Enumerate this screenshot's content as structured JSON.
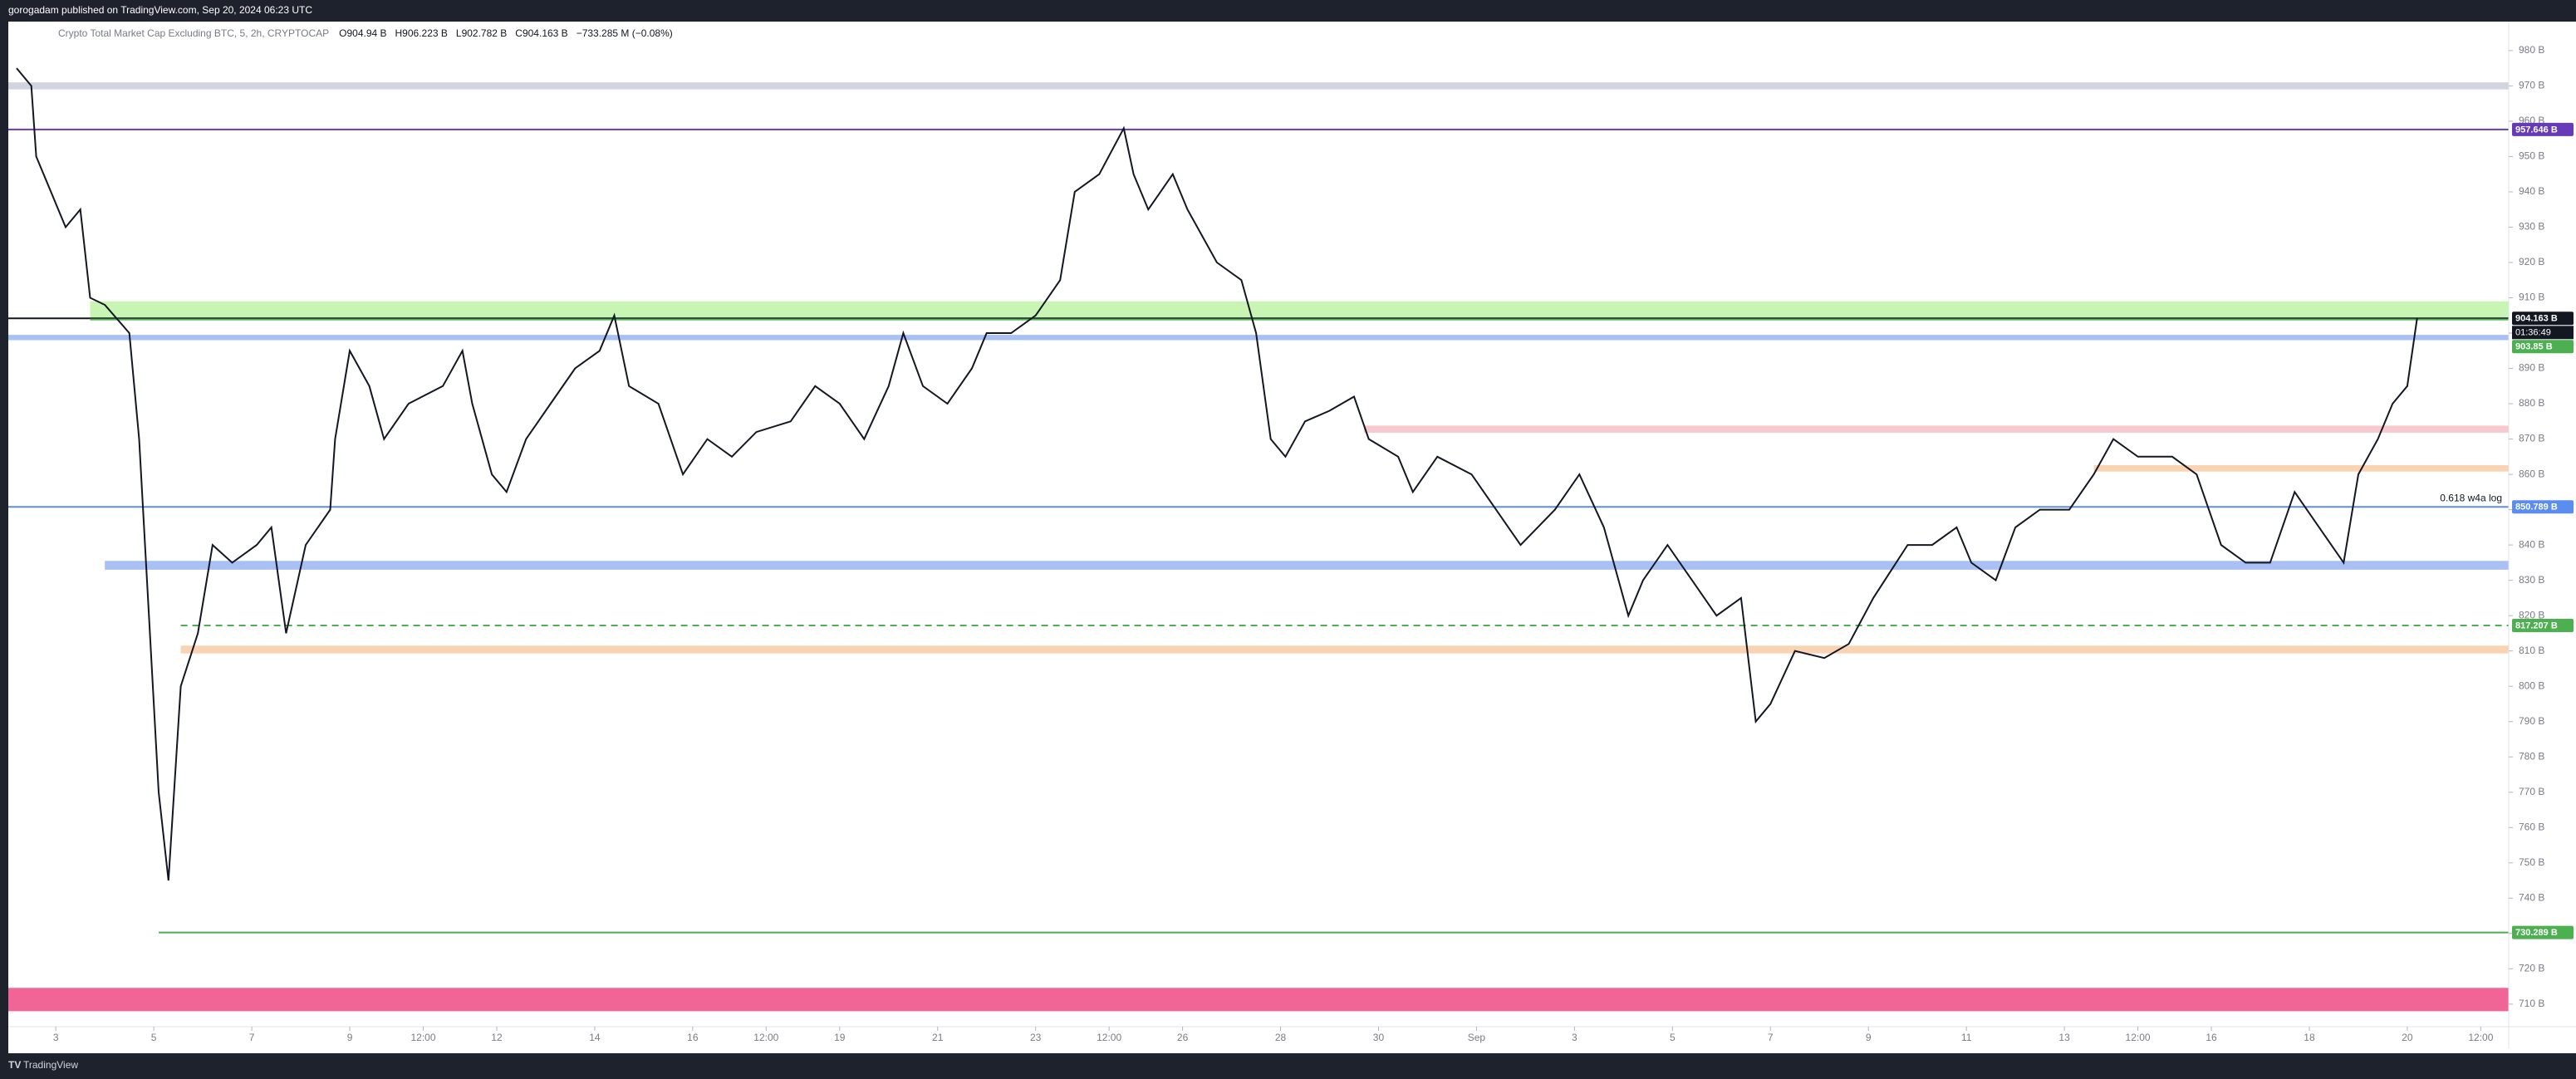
{
  "header": {
    "publisher": "gorogadam published on TradingView.com, Sep 20, 2024 06:23 UTC",
    "brand": "TradingView"
  },
  "chart_data": {
    "type": "line",
    "title": "Crypto Total Market Cap Excluding BTC, 5, 2h, CRYPTOCAP",
    "ohlc": [
      "O904.94 B",
      "H906.223 B",
      "L902.782 B",
      "C904.163 B",
      "−733.285 M (−0.08%)"
    ],
    "color": "#131722",
    "x": [
      2.2,
      2.5,
      2.6,
      2.9,
      3.2,
      3.5,
      3.7,
      4.0,
      4.5,
      4.7,
      4.9,
      5.1,
      5.3,
      5.55,
      5.9,
      6.2,
      6.6,
      7.1,
      7.4,
      7.7,
      8.1,
      8.6,
      8.7,
      9.0,
      9.4,
      9.7,
      10.2,
      10.9,
      11.3,
      11.5,
      11.9,
      12.2,
      12.6,
      13.1,
      13.6,
      14.1,
      14.4,
      14.7,
      15.3,
      15.8,
      16.3,
      16.8,
      17.3,
      18.0,
      18.5,
      19.0,
      19.5,
      20.0,
      20.3,
      20.7,
      21.2,
      21.7,
      22.0,
      22.5,
      23.0,
      23.5,
      23.8,
      24.3,
      24.8,
      25.0,
      25.3,
      25.8,
      26.1,
      26.7,
      27.2,
      27.5,
      27.8,
      28.1,
      28.5,
      29.0,
      29.5,
      29.8,
      30.4,
      30.7,
      31.2,
      31.9,
      32.4,
      32.9,
      33.6,
      34.1,
      34.6,
      35.1,
      35.4,
      35.9,
      36.4,
      36.9,
      37.4,
      37.7,
      38.0,
      38.5,
      39.1,
      39.6,
      40.1,
      40.8,
      41.3,
      41.8,
      42.1,
      42.6,
      43.0,
      43.5,
      44.1,
      44.6,
      45.0,
      45.5,
      46.2,
      46.7,
      47.2,
      47.7,
      48.2,
      48.7,
      49.2,
      49.7,
      50.0,
      50.4,
      50.7,
      51.0,
      51.2
    ],
    "values": [
      975,
      970,
      950,
      940,
      930,
      935,
      910,
      908,
      900,
      870,
      820,
      770,
      745,
      800,
      815,
      840,
      835,
      840,
      845,
      815,
      840,
      850,
      870,
      895,
      885,
      870,
      880,
      885,
      895,
      880,
      860,
      855,
      870,
      880,
      890,
      895,
      905,
      885,
      880,
      860,
      870,
      865,
      872,
      875,
      885,
      880,
      870,
      885,
      900,
      885,
      880,
      890,
      900,
      900,
      905,
      915,
      940,
      945,
      958,
      945,
      935,
      945,
      935,
      920,
      915,
      900,
      870,
      865,
      875,
      878,
      882,
      870,
      865,
      855,
      865,
      860,
      850,
      840,
      850,
      860,
      845,
      820,
      830,
      840,
      830,
      820,
      825,
      790,
      795,
      810,
      808,
      812,
      825,
      840,
      840,
      845,
      835,
      830,
      845,
      850,
      850,
      860,
      870,
      865,
      865,
      860,
      840,
      835,
      835,
      855,
      845,
      835,
      860,
      870,
      880,
      885,
      904.163
    ],
    "xlim": [
      2.03,
      53.07
    ],
    "ylim": [
      697.5,
      988.2
    ],
    "xticks": [
      3,
      5,
      7,
      9,
      {
        "value": 10.5,
        "label": "12:00"
      },
      12,
      14,
      16,
      {
        "value": 17.5,
        "label": "12:00"
      },
      19,
      21,
      23,
      {
        "value": 24.5,
        "label": "12:00"
      },
      26,
      28,
      30,
      {
        "value": 32,
        "label": "Sep"
      },
      {
        "value": 34,
        "label": "3"
      },
      {
        "value": 36,
        "label": "5"
      },
      {
        "value": 38,
        "label": "7"
      },
      {
        "value": 40,
        "label": "9"
      },
      {
        "value": 42,
        "label": "11"
      },
      {
        "value": 44,
        "label": "13"
      },
      {
        "value": 45.5,
        "label": "12:00"
      },
      {
        "value": 47,
        "label": "16"
      },
      {
        "value": 49,
        "label": "18"
      },
      {
        "value": 51,
        "label": "20"
      },
      {
        "value": 52.5,
        "label": "12:00"
      }
    ],
    "yticks": [
      {
        "value": 710,
        "label": "710 B"
      },
      {
        "value": 720,
        "label": "720 B"
      },
      {
        "value": 730,
        "label": "730 B"
      },
      {
        "value": 740,
        "label": "740 B"
      },
      {
        "value": 750,
        "label": "750 B"
      },
      {
        "value": 760,
        "label": "760 B"
      },
      {
        "value": 770,
        "label": "770 B"
      },
      {
        "value": 780,
        "label": "780 B"
      },
      {
        "value": 790,
        "label": "790 B"
      },
      {
        "value": 800,
        "label": "800 B"
      },
      {
        "value": 810,
        "label": "810 B"
      },
      {
        "value": 820,
        "label": "820 B"
      },
      {
        "value": 830,
        "label": "830 B"
      },
      {
        "value": 840,
        "label": "840 B"
      },
      {
        "value": 850,
        "label": "850 B"
      },
      {
        "value": 860,
        "label": "860 B"
      },
      {
        "value": 870,
        "label": "870 B"
      },
      {
        "value": 880,
        "label": "880 B"
      },
      {
        "value": 890,
        "label": "890 B"
      },
      {
        "value": 900,
        "label": "900 B"
      },
      {
        "value": 910,
        "label": "910 B"
      },
      {
        "value": 920,
        "label": "920 B"
      },
      {
        "value": 930,
        "label": "930 B"
      },
      {
        "value": 940,
        "label": "940 B"
      },
      {
        "value": 950,
        "label": "950 B"
      },
      {
        "value": 960,
        "label": "960 B"
      },
      {
        "value": 970,
        "label": "970 B"
      },
      {
        "value": 980,
        "label": "980 B"
      }
    ],
    "zones": [
      {
        "from": 969,
        "to": 971,
        "color": "#d1d4dc"
      },
      {
        "from": 904,
        "to": 909,
        "start": 3.7,
        "color": "#c8f5b4"
      },
      {
        "from": 898,
        "to": 899.5,
        "color": "#a9c0f5"
      },
      {
        "from": 871.8,
        "to": 873.8,
        "start": 29.7,
        "color": "#f8c8cf"
      },
      {
        "from": 860.8,
        "to": 862.6,
        "start": 44.6,
        "color": "#fad3b2"
      },
      {
        "from": 833,
        "to": 835.5,
        "start": 4.0,
        "color": "#a9c0f5"
      },
      {
        "from": 809.3,
        "to": 811.5,
        "start": 5.55,
        "color": "#fad3b2"
      },
      {
        "from": 708,
        "to": 714.6,
        "color": "#f06595"
      }
    ],
    "levels": [
      {
        "value": 957.646,
        "label": "957.646 B",
        "color": "#673ab7"
      },
      {
        "value": 904.163,
        "label": "904.163 B",
        "color": "#131722",
        "countdown": "01:36:49"
      },
      {
        "value": 903.85,
        "label": "903.85 B",
        "color": "#4caf50",
        "start": 3.7
      },
      {
        "value": 850.789,
        "label": "850.789 B",
        "color": "#5b8def",
        "note": "0.618  w4a log"
      },
      {
        "value": 817.207,
        "label": "817.207 B",
        "color": "#4caf50",
        "start": 5.55,
        "dashed": true
      },
      {
        "value": 730.289,
        "label": "730.289 B",
        "color": "#4caf50",
        "start": 5.1
      }
    ]
  }
}
